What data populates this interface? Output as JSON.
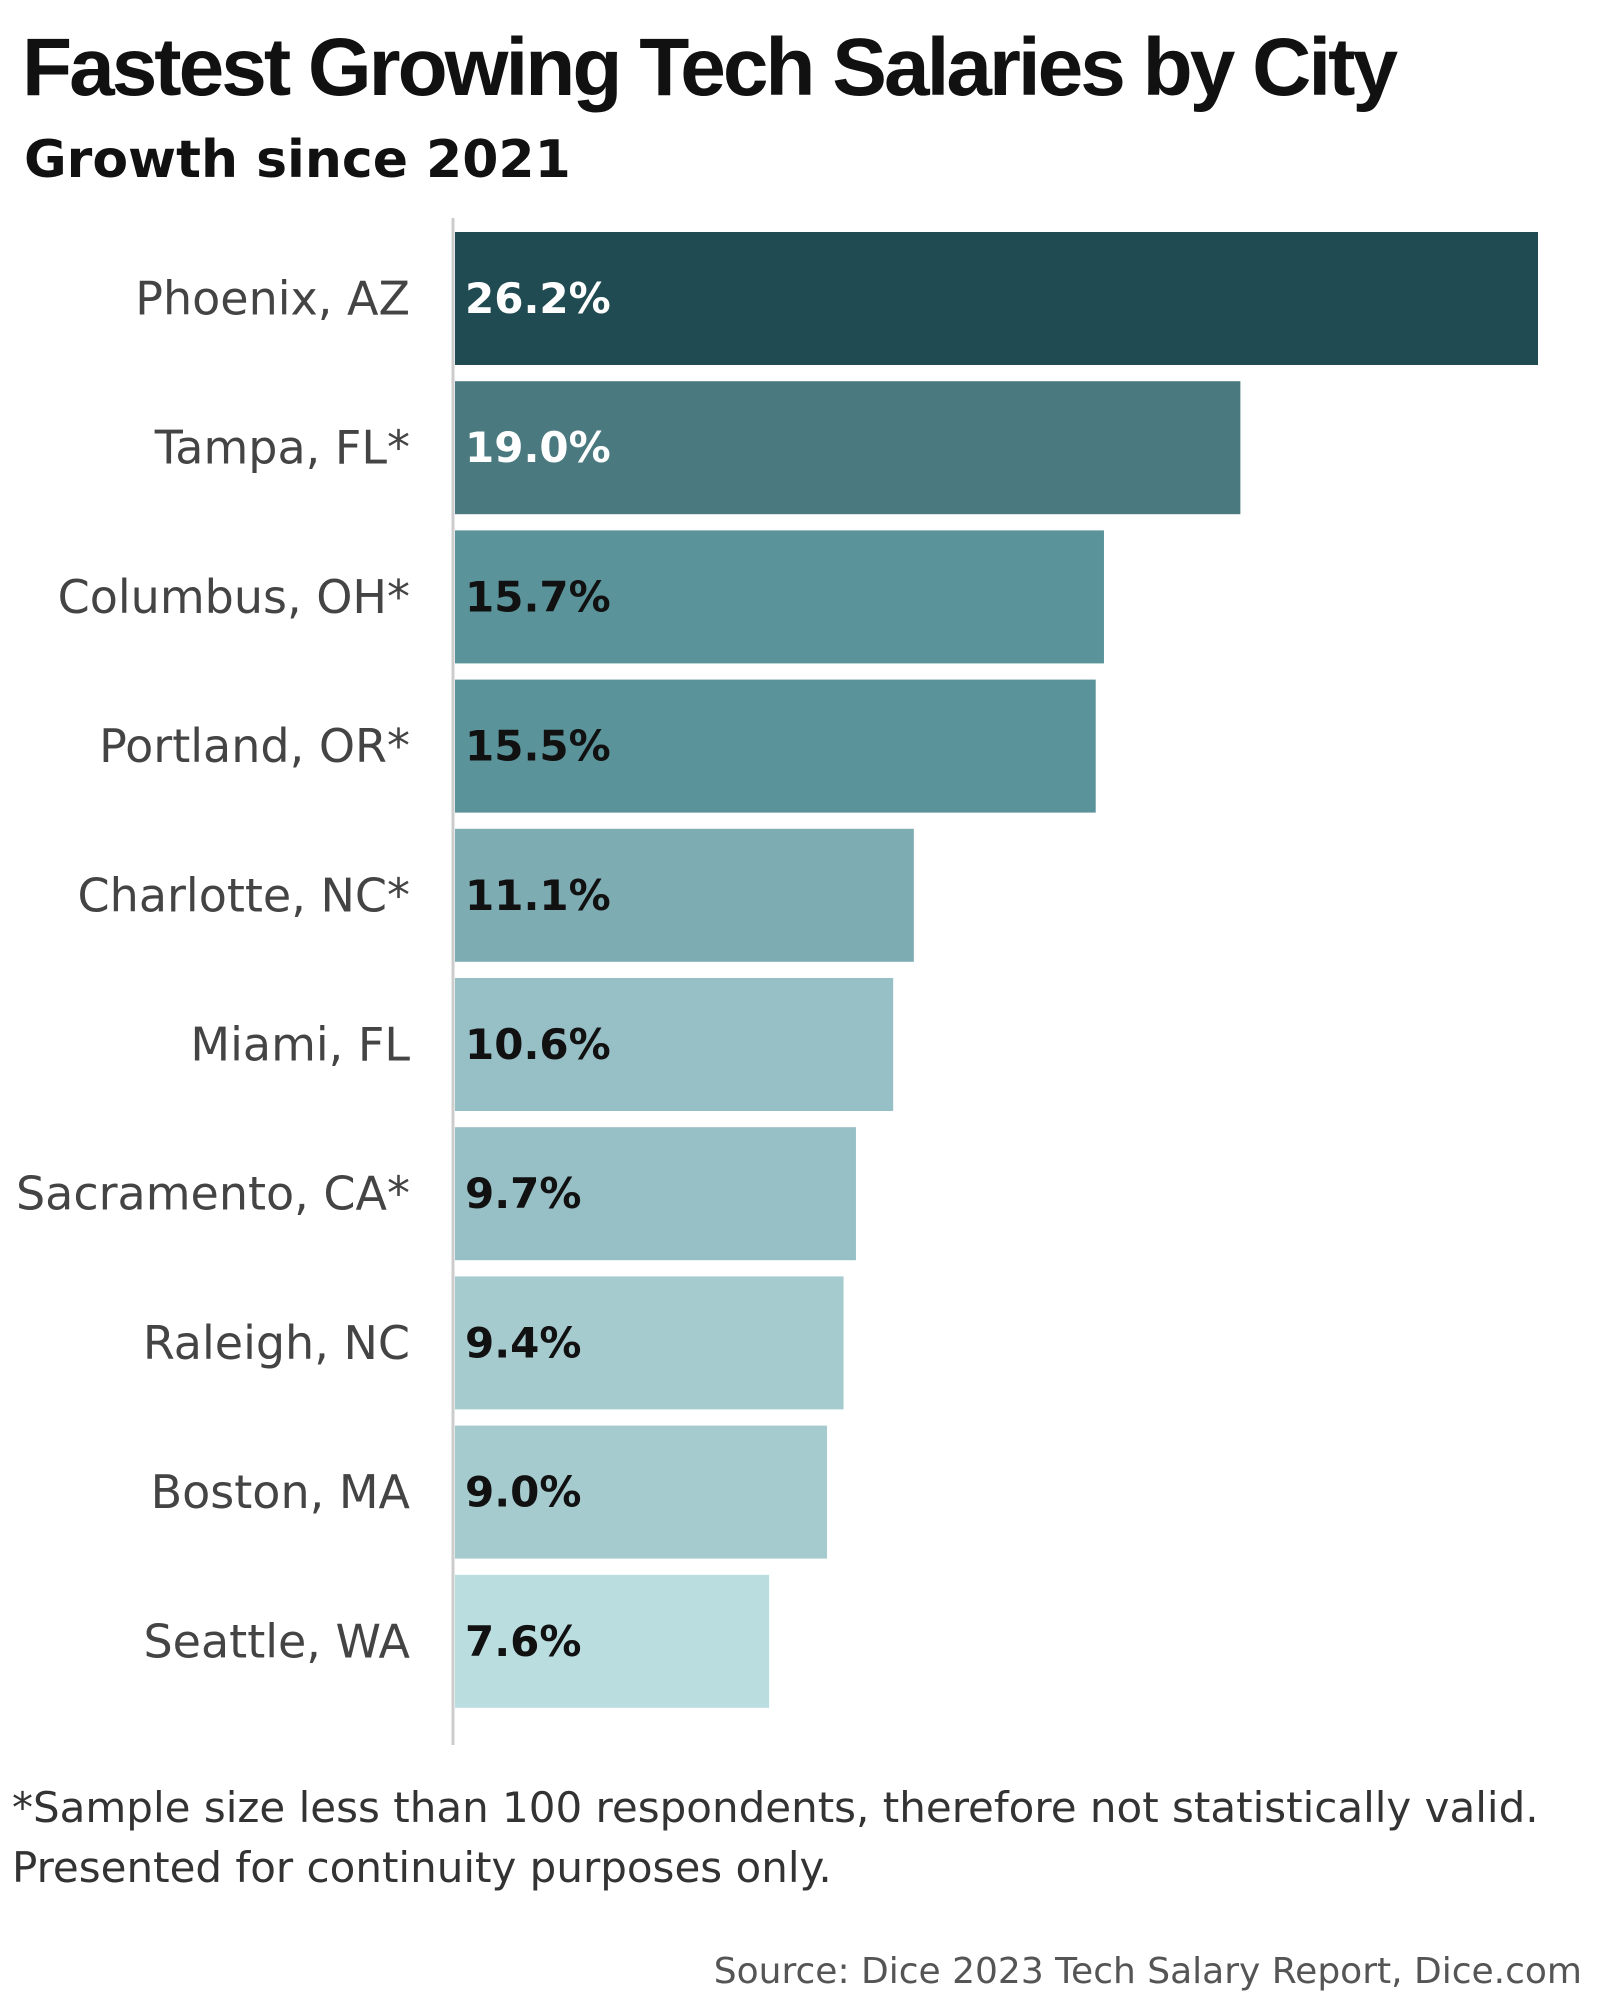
{
  "title": "Fastest Growing Tech Salaries by City",
  "subtitle": "Growth since 2021",
  "footnote": {
    "line1": "*Sample size less than 100 respondents, therefore not statistically valid.",
    "line2": "Presented for continuity purposes only."
  },
  "source": "Source: Dice 2023 Tech Salary Report, Dice.com",
  "chart_data": {
    "type": "bar",
    "orientation": "horizontal",
    "title": "Fastest Growing Tech Salaries by City",
    "subtitle": "Growth since 2021",
    "xlabel": "",
    "ylabel": "",
    "unit": "%",
    "grid": false,
    "legend": "none",
    "xlim": [
      0,
      26.2
    ],
    "categories": [
      "Phoenix, AZ",
      "Tampa, FL*",
      "Columbus, OH*",
      "Portland, OR*",
      "Charlotte, NC*",
      "Miami, FL",
      "Sacramento, CA*",
      "Raleigh, NC",
      "Boston, MA",
      "Seattle, WA"
    ],
    "values": [
      26.2,
      19.0,
      15.7,
      15.5,
      11.1,
      10.6,
      9.7,
      9.4,
      9.0,
      7.6
    ],
    "value_labels": [
      "26.2%",
      "19.0%",
      "15.7%",
      "15.5%",
      "11.1%",
      "10.6%",
      "9.7%",
      "9.4%",
      "9.0%",
      "7.6%"
    ],
    "bar_colors": [
      "#204b52",
      "#4a7a7f",
      "#5a9399",
      "#5a9399",
      "#7eacb3",
      "#96bfc6",
      "#96bfc6",
      "#a6cbcf",
      "#a6cbcf",
      "#badddf"
    ],
    "label_colors": [
      "#ffffff",
      "#ffffff",
      "#111111",
      "#111111",
      "#111111",
      "#111111",
      "#111111",
      "#111111",
      "#111111",
      "#111111"
    ],
    "axis_color": "#cccccc"
  }
}
